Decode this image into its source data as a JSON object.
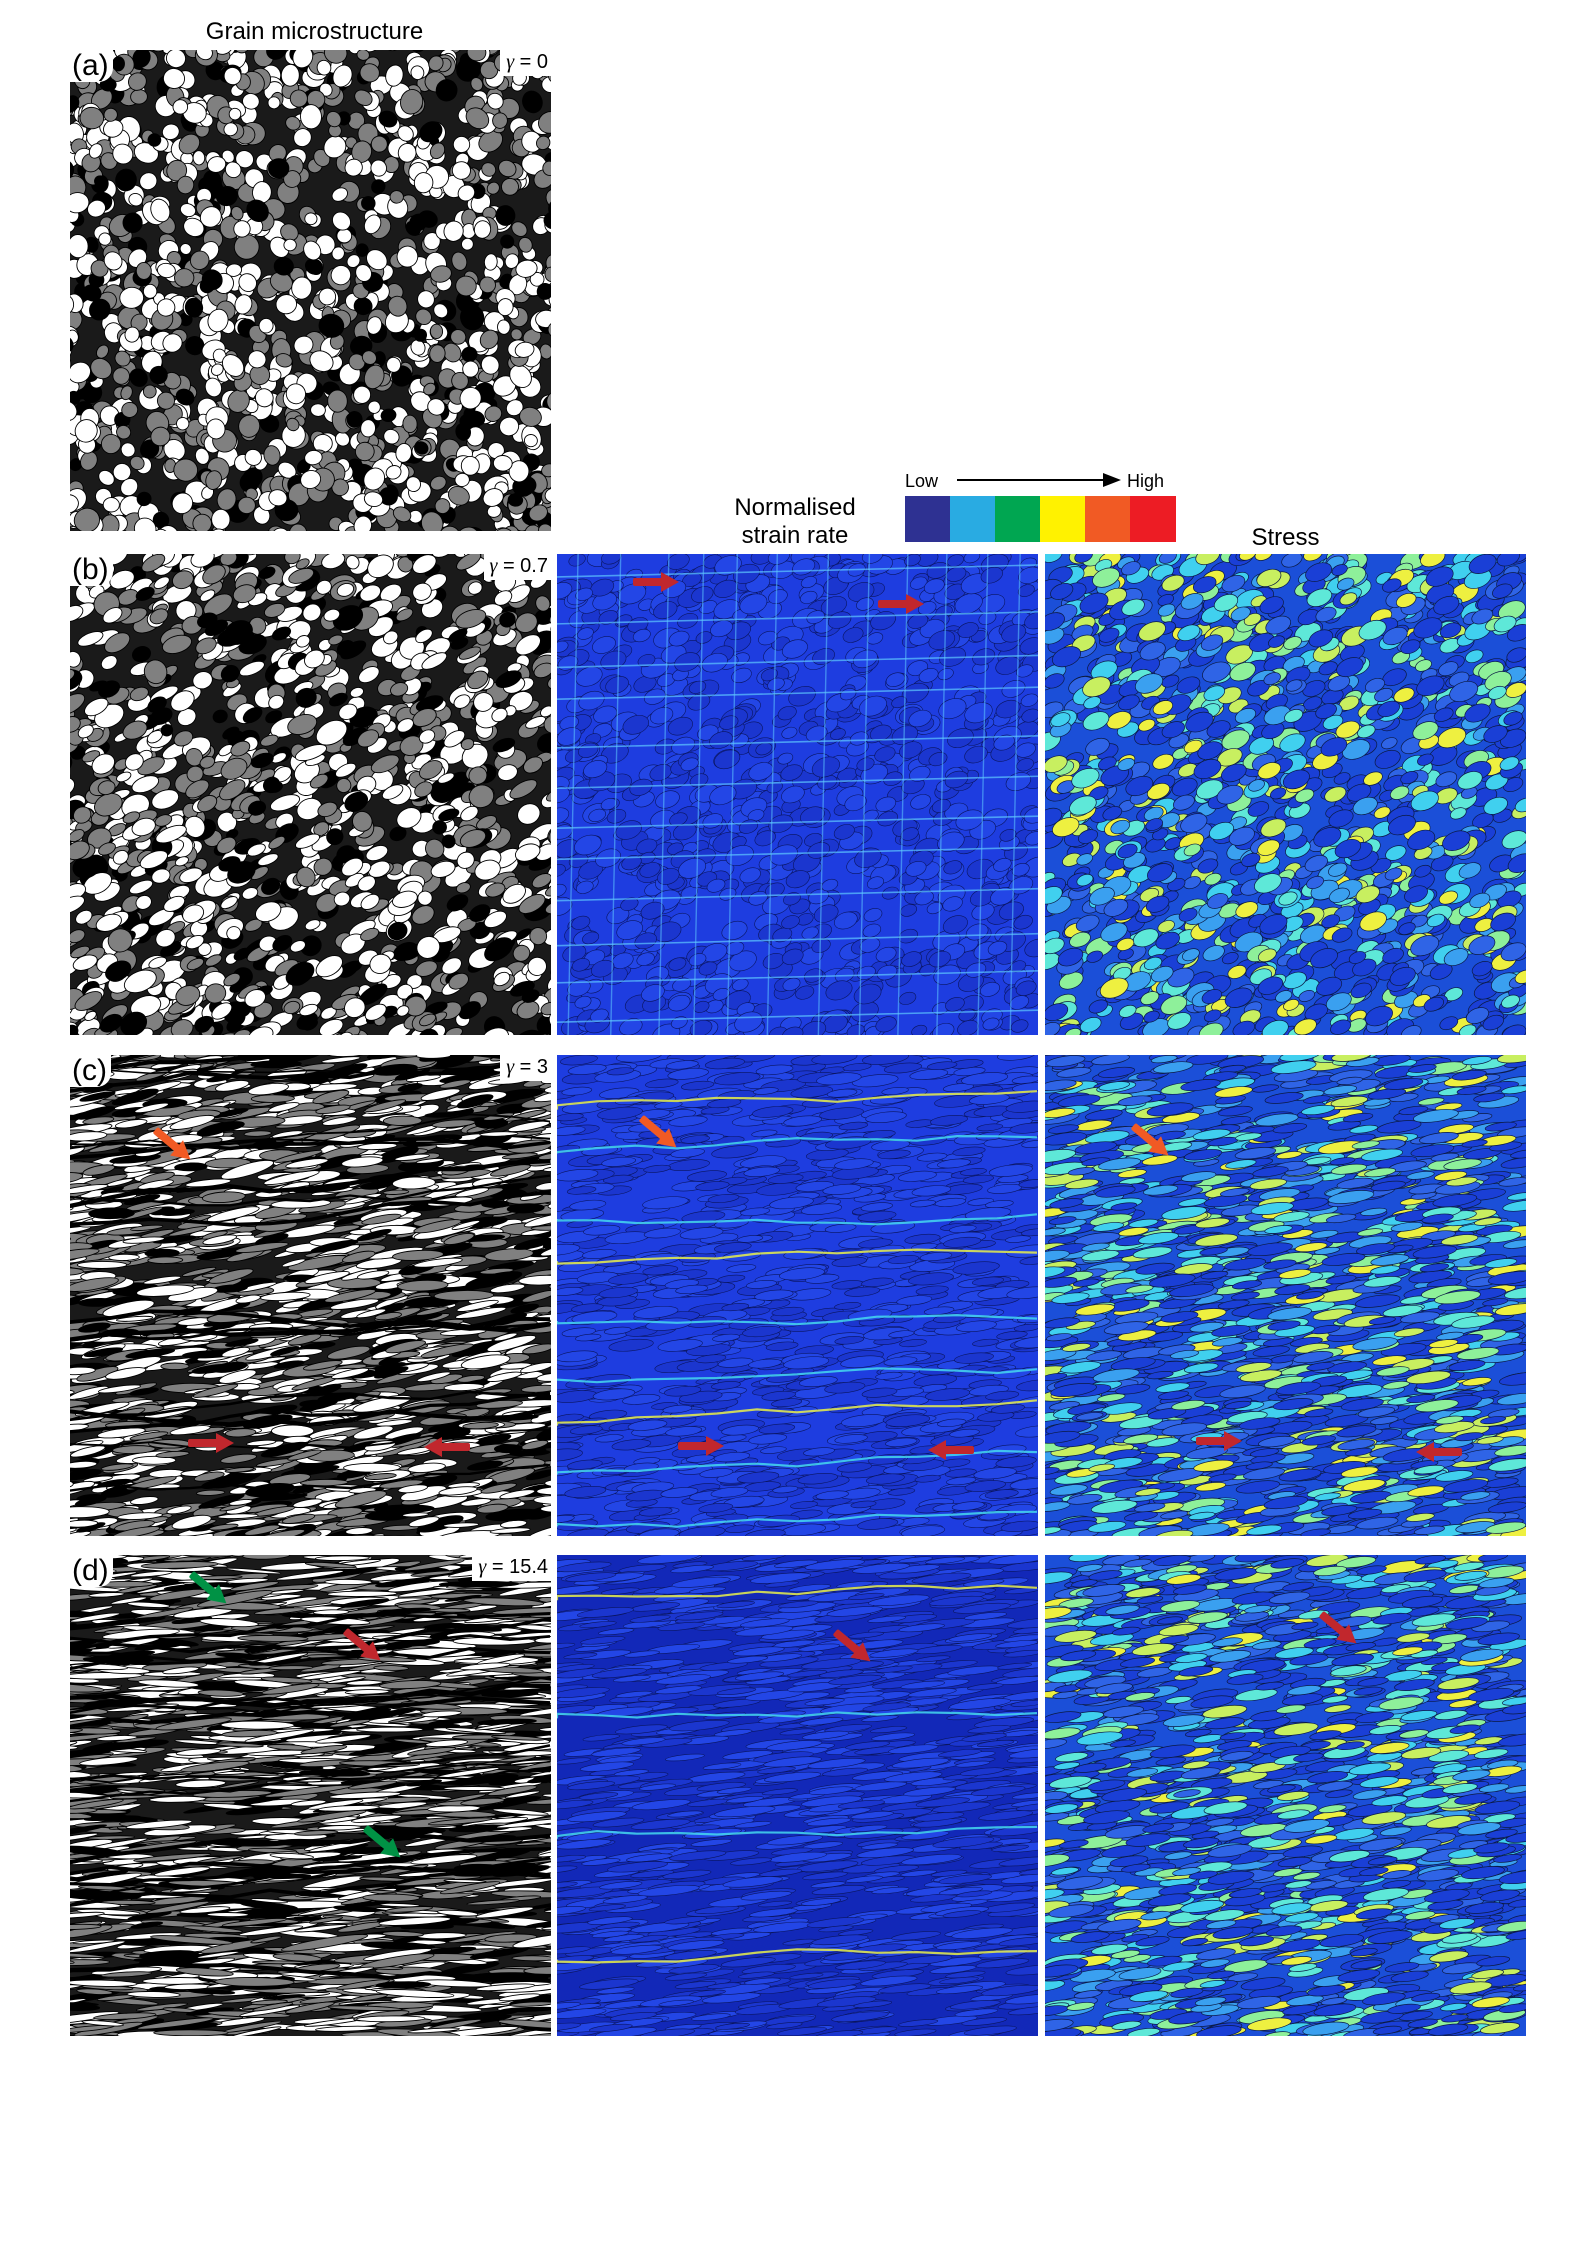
{
  "columns": {
    "grain": "Grain microstructure",
    "strain_rate_line1": "Normalised",
    "strain_rate_line2": "strain rate",
    "stress": "Stress"
  },
  "colorbar": {
    "low_label": "Low",
    "high_label": "High",
    "colors": [
      "#2e3192",
      "#29abe2",
      "#00a651",
      "#fff200",
      "#f15a24",
      "#ed1c24"
    ]
  },
  "rows": [
    {
      "letter": "(a)",
      "gamma_label": "γ",
      "gamma_value": " = 0"
    },
    {
      "letter": "(b)",
      "gamma_label": "γ",
      "gamma_value": " = 0.7"
    },
    {
      "letter": "(c)",
      "gamma_label": "γ",
      "gamma_value": " = 3"
    },
    {
      "letter": "(d)",
      "gamma_label": "γ",
      "gamma_value": " = 15.4"
    }
  ],
  "arrow_colors": {
    "red": "#c1272d",
    "orange": "#f15a24",
    "green": "#009245"
  }
}
